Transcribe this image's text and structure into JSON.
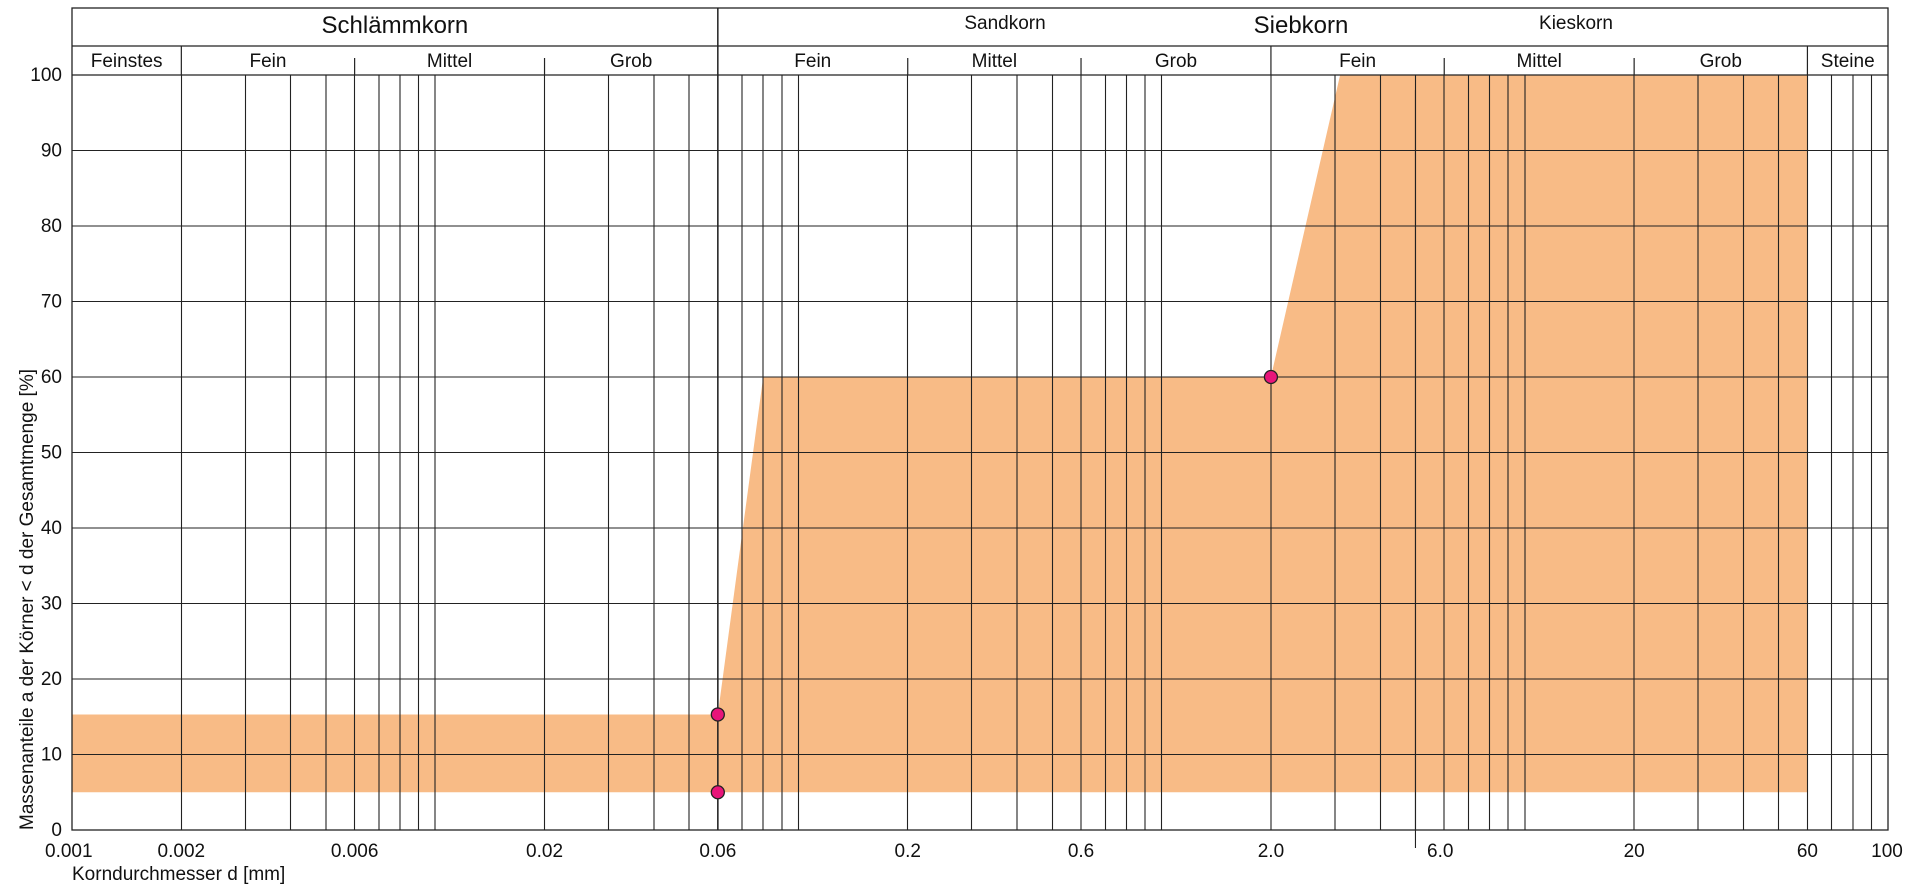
{
  "chart_data": {
    "type": "area",
    "title": "",
    "xlabel": "Korndurchmesser d [mm]",
    "ylabel": "Massenanteile a der Körner < d der Gesamtmenge [%]",
    "x_scale": "log",
    "xlim": [
      0.001,
      100
    ],
    "ylim": [
      0,
      100
    ],
    "grid": true,
    "x_tick_labels": [
      {
        "value": 0.001,
        "label": "0.001"
      },
      {
        "value": 0.002,
        "label": "0.002"
      },
      {
        "value": 0.006,
        "label": "0.006"
      },
      {
        "value": 0.02,
        "label": "0.02"
      },
      {
        "value": 0.06,
        "label": "0.06"
      },
      {
        "value": 0.2,
        "label": "0.2"
      },
      {
        "value": 0.6,
        "label": "0.6"
      },
      {
        "value": 2.0,
        "label": "2.0"
      },
      {
        "value": 6.0,
        "label": "6.0"
      },
      {
        "value": 20,
        "label": "20"
      },
      {
        "value": 60,
        "label": "60"
      },
      {
        "value": 100,
        "label": "100"
      }
    ],
    "y_tick_labels": [
      "0",
      "10",
      "20",
      "30",
      "40",
      "50",
      "60",
      "70",
      "80",
      "90",
      "100"
    ],
    "header": {
      "top": [
        {
          "label": "Schlämmkorn",
          "from": 0.001,
          "to": 0.06
        },
        {
          "label": "Sandkorn",
          "from": 0.06,
          "to": 2.0
        },
        {
          "label": "Siebkorn",
          "from": 0.06,
          "to": 60
        },
        {
          "label": "Kieskorn",
          "from": 2.0,
          "to": 60
        }
      ],
      "bottom": [
        {
          "label": "Feinstes",
          "from": 0.001,
          "to": 0.002
        },
        {
          "label": "Fein",
          "from": 0.002,
          "to": 0.006
        },
        {
          "label": "Mittel",
          "from": 0.006,
          "to": 0.02
        },
        {
          "label": "Grob",
          "from": 0.02,
          "to": 0.06
        },
        {
          "label": "Fein",
          "from": 0.06,
          "to": 0.2
        },
        {
          "label": "Mittel",
          "from": 0.2,
          "to": 0.6
        },
        {
          "label": "Grob",
          "from": 0.6,
          "to": 2.0
        },
        {
          "label": "Fein",
          "from": 2.0,
          "to": 6.0
        },
        {
          "label": "Mittel",
          "from": 6.0,
          "to": 20
        },
        {
          "label": "Grob",
          "from": 20,
          "to": 60
        },
        {
          "label": "Steine",
          "from": 60,
          "to": 100
        }
      ]
    },
    "band": {
      "color": "#f8bb86",
      "upper": [
        [
          0.001,
          15.3
        ],
        [
          0.06,
          15.3
        ],
        [
          0.06,
          15.3
        ],
        [
          0.08,
          60
        ],
        [
          2.0,
          60
        ],
        [
          3.1,
          100
        ],
        [
          60,
          100
        ]
      ],
      "lower": [
        [
          0.001,
          5
        ],
        [
          60,
          5
        ]
      ]
    },
    "points": {
      "color": "#e8157a",
      "data": [
        [
          0.06,
          15.3
        ],
        [
          0.06,
          5
        ],
        [
          2.0,
          60
        ]
      ]
    }
  }
}
